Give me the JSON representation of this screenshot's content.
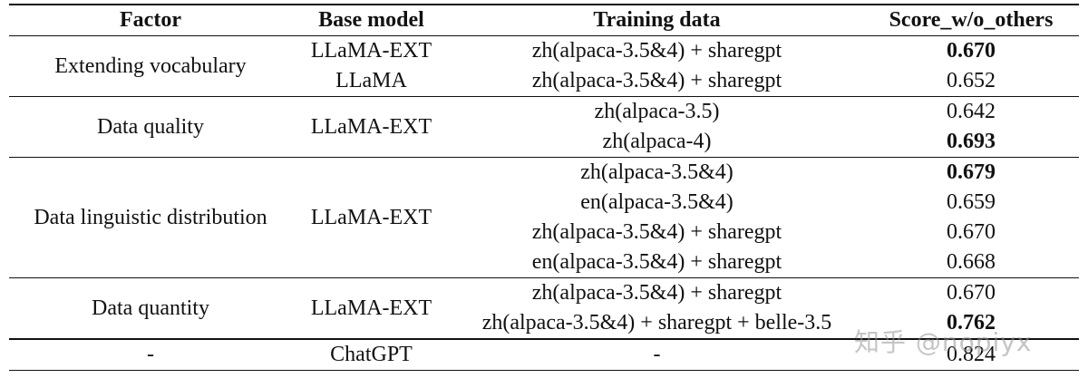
{
  "header": {
    "factor": "Factor",
    "base_model": "Base model",
    "training_data": "Training data",
    "score": "Score_w/o_others"
  },
  "groups": [
    {
      "factor": "Extending vocabulary",
      "rows": [
        {
          "base": "LLaMA-EXT",
          "data": "zh(alpaca-3.5&4) + sharegpt",
          "score": "0.670",
          "bold": true
        },
        {
          "base": "LLaMA",
          "data": "zh(alpaca-3.5&4) + sharegpt",
          "score": "0.652",
          "bold": false
        }
      ]
    },
    {
      "factor": "Data quality",
      "base": "LLaMA-EXT",
      "rows": [
        {
          "data": "zh(alpaca-3.5)",
          "score": "0.642",
          "bold": false
        },
        {
          "data": "zh(alpaca-4)",
          "score": "0.693",
          "bold": true
        }
      ]
    },
    {
      "factor": "Data linguistic distribution",
      "base": "LLaMA-EXT",
      "rows": [
        {
          "data": "zh(alpaca-3.5&4)",
          "score": "0.679",
          "bold": true
        },
        {
          "data": "en(alpaca-3.5&4)",
          "score": "0.659",
          "bold": false
        },
        {
          "data": "zh(alpaca-3.5&4) + sharegpt",
          "score": "0.670",
          "bold": false
        },
        {
          "data": "en(alpaca-3.5&4) + sharegpt",
          "score": "0.668",
          "bold": false
        }
      ]
    },
    {
      "factor": "Data quantity",
      "base": "LLaMA-EXT",
      "rows": [
        {
          "data": "zh(alpaca-3.5&4) + sharegpt",
          "score": "0.670",
          "bold": false
        },
        {
          "data": "zh(alpaca-3.5&4) + sharegpt + belle-3.5",
          "score": "0.762",
          "bold": true
        }
      ]
    }
  ],
  "final_row": {
    "factor": "-",
    "base": "ChatGPT",
    "data": "-",
    "score": "0.824"
  },
  "watermark": "知乎 @nopiyx"
}
